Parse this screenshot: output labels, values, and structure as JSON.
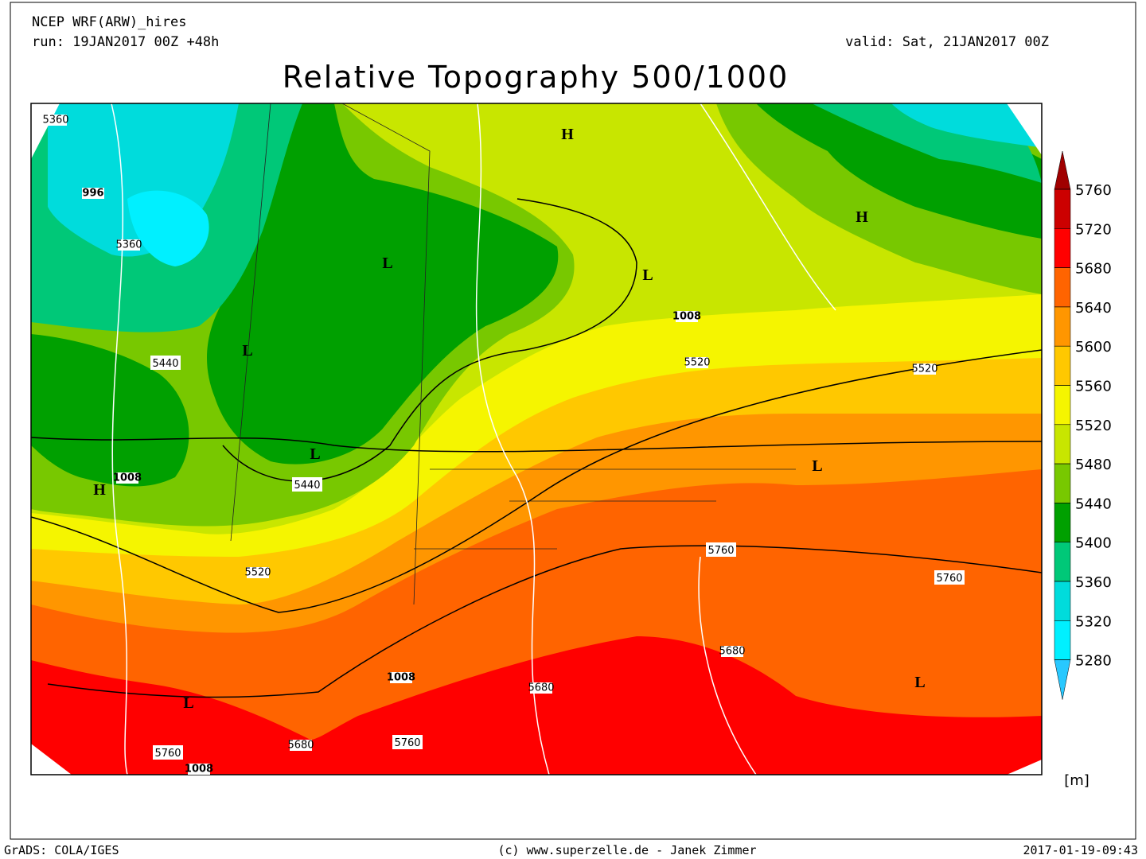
{
  "header": {
    "model": "NCEP WRF(ARW)_hires",
    "run": "run: 19JAN2017 00Z +48h",
    "valid": "valid: Sat, 21JAN2017 00Z",
    "title": "Relative Topography 500/1000"
  },
  "map": {
    "centers": [
      "H",
      "H",
      "H",
      "L",
      "L",
      "L",
      "L",
      "L",
      "L",
      "L"
    ],
    "contour_labels": [
      "5440",
      "5440",
      "1008",
      "1008",
      "996",
      "5760",
      "5760",
      "5760",
      "5760",
      "1008",
      "1008",
      "5520",
      "5520",
      "5360",
      "5360",
      "5680",
      "5680",
      "5680",
      "5520"
    ],
    "colorbar": {
      "levels": [
        5760,
        5720,
        5680,
        5640,
        5600,
        5560,
        5520,
        5480,
        5440,
        5400,
        5360,
        5320,
        5280
      ],
      "colors": [
        "#a00000",
        "#cc0000",
        "#ff0000",
        "#ff6400",
        "#ff9600",
        "#ffc800",
        "#f5f500",
        "#c8e600",
        "#78c800",
        "#00a000",
        "#00c878",
        "#00dcdc",
        "#00f0ff",
        "#28c8ff"
      ],
      "unit": "[m]"
    }
  },
  "footer": {
    "left": "GrADS: COLA/IGES",
    "center": "(c) www.superzelle.de - Janek Zimmer",
    "right": "2017-01-19-09:43"
  }
}
